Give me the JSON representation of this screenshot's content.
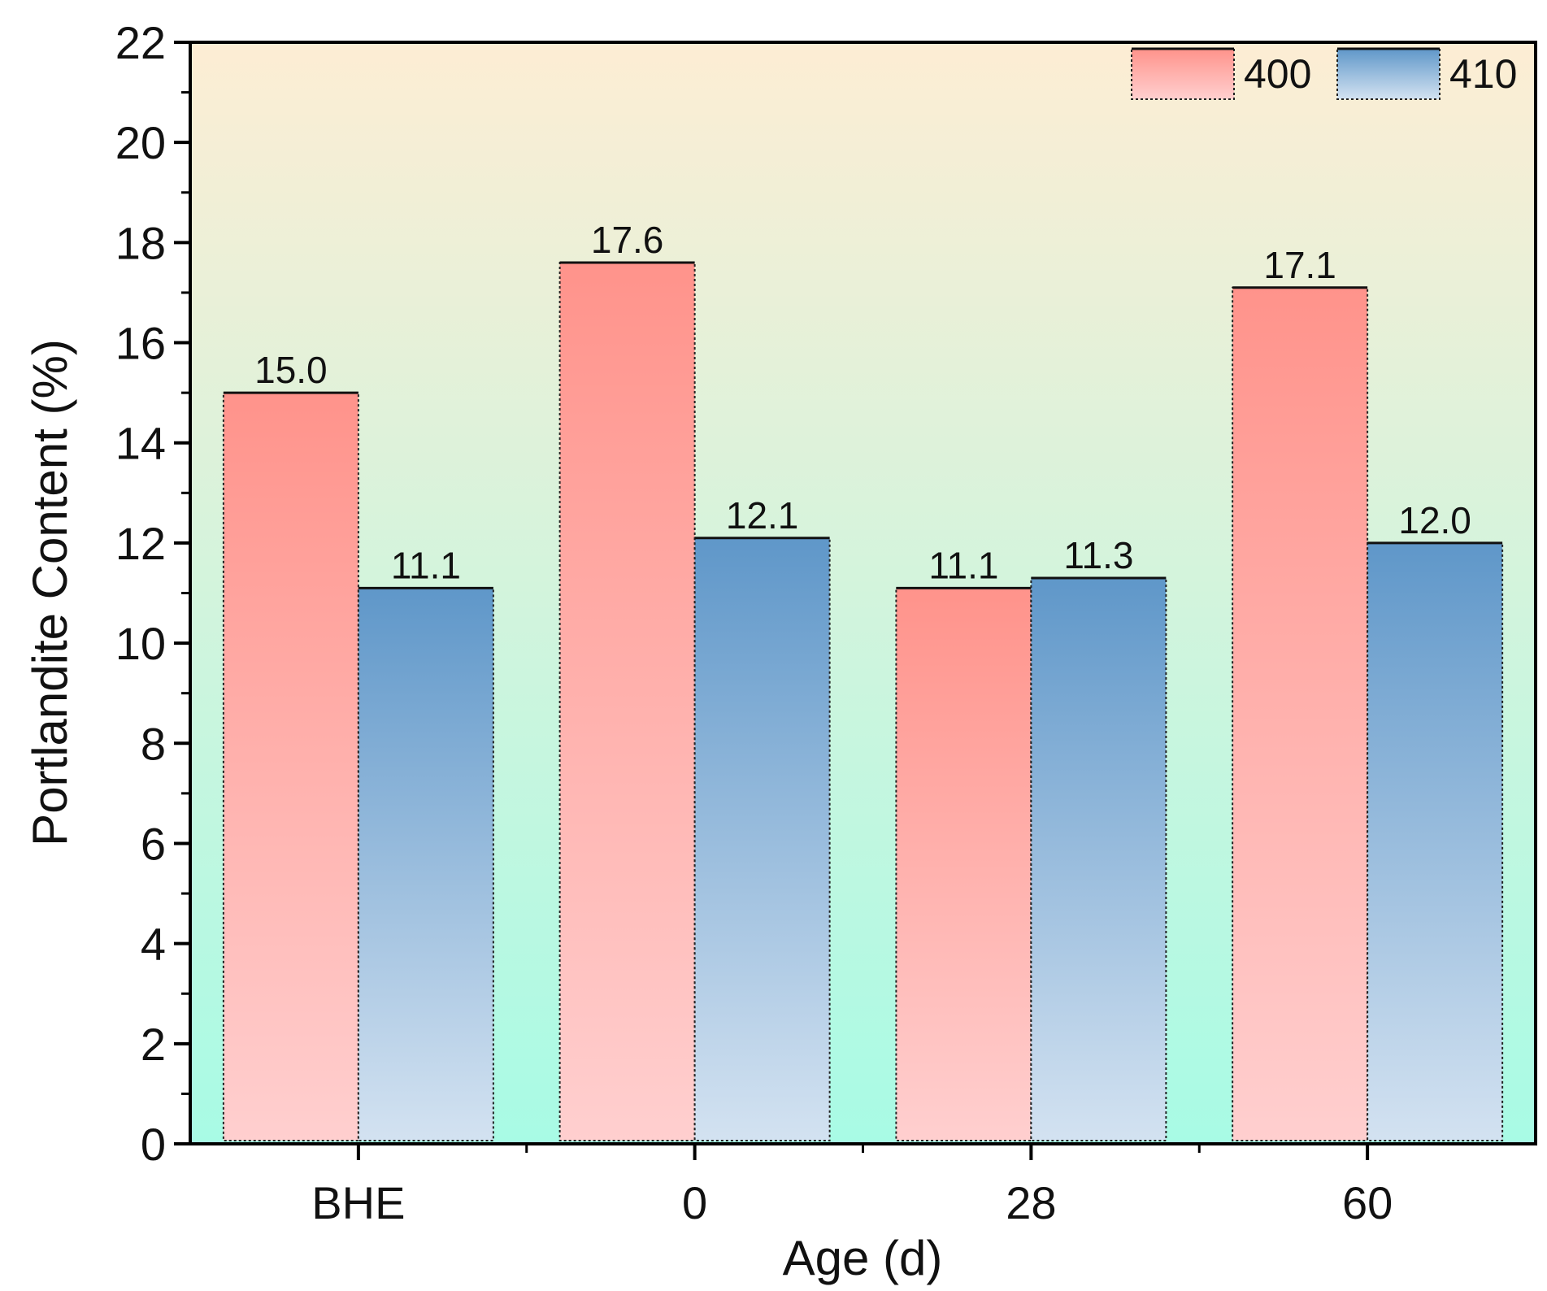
{
  "chart_data": {
    "type": "bar",
    "title": "",
    "xlabel": "Age (d)",
    "ylabel": "Portlandite Content (%)",
    "categories": [
      "BHE",
      "0",
      "28",
      "60"
    ],
    "series": [
      {
        "name": "400",
        "values": [
          15.0,
          17.6,
          11.1,
          17.1
        ],
        "labels": [
          "15.0",
          "17.6",
          "11.1",
          "17.1"
        ],
        "color_top": "#ff938b",
        "color_bottom": "#ffcfcf"
      },
      {
        "name": "410",
        "values": [
          11.1,
          12.1,
          11.3,
          12.0
        ],
        "labels": [
          "11.1",
          "12.1",
          "11.3",
          "12.0"
        ],
        "color_top": "#5f97c9",
        "color_bottom": "#d3e2f1"
      }
    ],
    "ylim": [
      0,
      22
    ],
    "yticks": [
      0,
      2,
      4,
      6,
      8,
      10,
      12,
      14,
      16,
      18,
      20,
      22
    ],
    "yticks_labels": [
      "0",
      "2",
      "4",
      "6",
      "8",
      "10",
      "12",
      "14",
      "16",
      "18",
      "20",
      "22"
    ],
    "grid": false,
    "legend_position": "top-right",
    "background_gradient": {
      "top": "#fdedd4",
      "bottom": "#a8fbe5"
    }
  }
}
